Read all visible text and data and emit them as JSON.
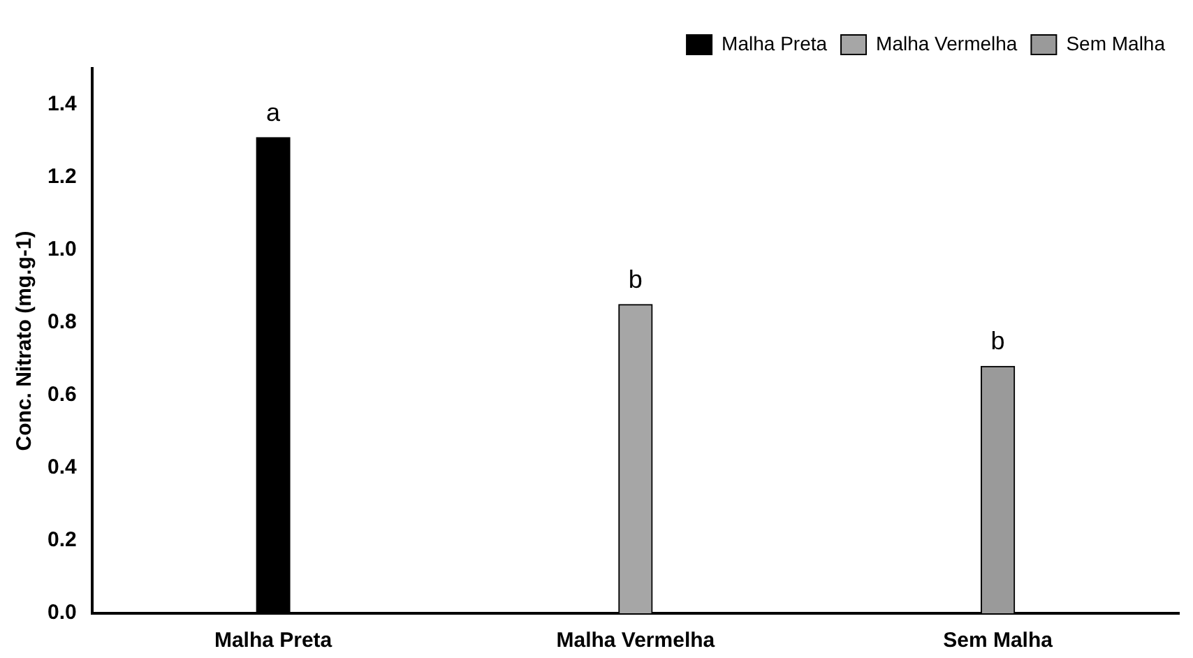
{
  "chart_data": {
    "type": "bar",
    "ylabel": "Conc. Nitrato (mg.g-1)",
    "categories": [
      "Malha Preta",
      "Malha Vermelha",
      "Sem Malha"
    ],
    "series": [
      {
        "name": "Malha Preta",
        "color": "#000000",
        "values": [
          1.31,
          null,
          null
        ]
      },
      {
        "name": "Malha Vermelha",
        "color": "#a6a6a6",
        "values": [
          null,
          0.85,
          null
        ]
      },
      {
        "name": "Sem Malha",
        "color": "#9a9a9a",
        "values": [
          null,
          null,
          0.68
        ]
      }
    ],
    "ylim": [
      0,
      1.5
    ],
    "yticks": [
      {
        "value": 0,
        "label": "0.0"
      },
      {
        "value": 0.2,
        "label": "0.2"
      },
      {
        "value": 0.4,
        "label": "0.4"
      },
      {
        "value": 0.6,
        "label": "0.6"
      },
      {
        "value": 0.8,
        "label": "0.8"
      },
      {
        "value": 1,
        "label": "1.0"
      },
      {
        "value": 1.2,
        "label": "1.2"
      },
      {
        "value": 1.4,
        "label": "1.4"
      }
    ],
    "grid": false,
    "legend": "top right",
    "annotations": [
      {
        "text": "a",
        "x": "Malha Preta",
        "y": 1.31
      },
      {
        "text": "b",
        "x": "Malha Vermelha",
        "y": 0.85
      },
      {
        "text": "b",
        "x": "Sem Malha",
        "y": 0.68
      }
    ]
  }
}
